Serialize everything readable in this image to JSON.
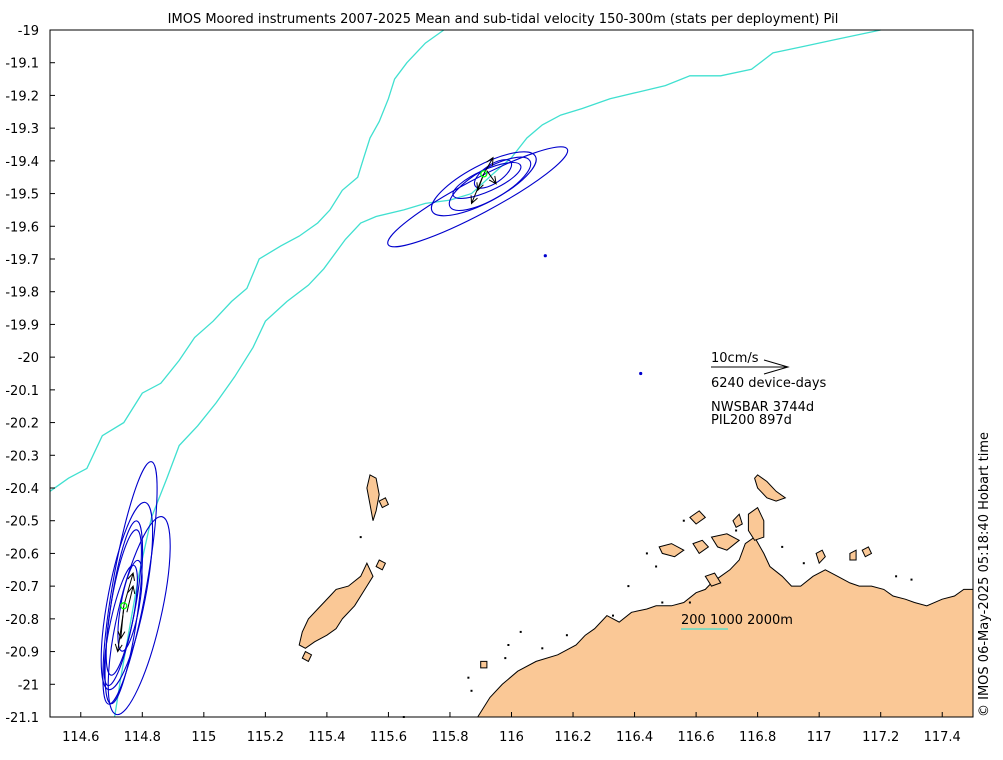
{
  "title": "IMOS Moored instruments 2007-2025 Mean and sub-tidal velocity 150-300m (stats per deployment) Pil",
  "copyright": "© IMOS 06-May-2025 05:18:40 Hobart time",
  "colors": {
    "land": "#fac896",
    "coast": "#000000",
    "isobath": "#40e0d0",
    "ellipse": "#0000cc",
    "arrow": "#000000",
    "mooring_marker": "#00ff00"
  },
  "axes": {
    "xlim": [
      114.5,
      117.5
    ],
    "ylim": [
      -21.1,
      -19.0
    ],
    "x_ticks": [
      114.6,
      114.8,
      115,
      115.2,
      115.4,
      115.6,
      115.8,
      116,
      116.2,
      116.4,
      116.6,
      116.8,
      117,
      117.2,
      117.4
    ],
    "x_tick_labels": [
      "114.6",
      "114.8",
      "115",
      "115.2",
      "115.4",
      "115.6",
      "115.8",
      "116",
      "116.2",
      "116.4",
      "116.6",
      "116.8",
      "117",
      "117.2",
      "117.4"
    ],
    "y_ticks": [
      -19,
      -19.1,
      -19.2,
      -19.3,
      -19.4,
      -19.5,
      -19.6,
      -19.7,
      -19.8,
      -19.9,
      -20,
      -20.1,
      -20.2,
      -20.3,
      -20.4,
      -20.5,
      -20.6,
      -20.7,
      -20.8,
      -20.9,
      -21,
      -21.1
    ],
    "y_tick_labels": [
      "-19",
      "-19.1",
      "-19.2",
      "-19.3",
      "-19.4",
      "-19.5",
      "-19.6",
      "-19.7",
      "-19.8",
      "-19.9",
      "-20",
      "-20.1",
      "-20.2",
      "-20.3",
      "-20.4",
      "-20.5",
      "-20.6",
      "-20.7",
      "-20.8",
      "-20.9",
      "-21",
      "-21.1"
    ]
  },
  "legend": {
    "scale_label": "10cm/s",
    "device_days": "6240 device-days",
    "station_1": "NWSBAR 3744d",
    "station_2": "PIL200 897d",
    "isobath_label": "200 1000 2000m"
  },
  "isobaths": [
    {
      "depth": 200,
      "points": [
        [
          114.5,
          -20.41
        ],
        [
          114.56,
          -20.37
        ],
        [
          114.62,
          -20.34
        ],
        [
          114.67,
          -20.24
        ],
        [
          114.74,
          -20.2
        ],
        [
          114.8,
          -20.11
        ],
        [
          114.86,
          -20.08
        ],
        [
          114.92,
          -20.01
        ],
        [
          114.97,
          -19.94
        ],
        [
          115.03,
          -19.89
        ],
        [
          115.09,
          -19.83
        ],
        [
          115.14,
          -19.79
        ],
        [
          115.18,
          -19.7
        ],
        [
          115.25,
          -19.66
        ],
        [
          115.31,
          -19.63
        ],
        [
          115.37,
          -19.59
        ],
        [
          115.41,
          -19.55
        ],
        [
          115.45,
          -19.49
        ],
        [
          115.5,
          -19.45
        ],
        [
          115.52,
          -19.39
        ],
        [
          115.54,
          -19.33
        ],
        [
          115.57,
          -19.28
        ],
        [
          115.6,
          -19.21
        ],
        [
          115.62,
          -19.15
        ],
        [
          115.66,
          -19.1
        ],
        [
          115.72,
          -19.04
        ],
        [
          115.78,
          -19.0
        ]
      ]
    },
    {
      "depth": 1000,
      "points": [
        [
          114.71,
          -21.1
        ],
        [
          114.73,
          -20.98
        ],
        [
          114.76,
          -20.82
        ],
        [
          114.79,
          -20.66
        ],
        [
          114.83,
          -20.49
        ],
        [
          114.88,
          -20.37
        ],
        [
          114.92,
          -20.27
        ],
        [
          114.98,
          -20.21
        ],
        [
          115.04,
          -20.14
        ],
        [
          115.1,
          -20.06
        ],
        [
          115.16,
          -19.97
        ],
        [
          115.2,
          -19.89
        ],
        [
          115.27,
          -19.83
        ],
        [
          115.34,
          -19.78
        ],
        [
          115.39,
          -19.73
        ],
        [
          115.46,
          -19.64
        ],
        [
          115.51,
          -19.59
        ],
        [
          115.56,
          -19.57
        ],
        [
          115.65,
          -19.55
        ],
        [
          115.72,
          -19.53
        ],
        [
          115.8,
          -19.52
        ],
        [
          115.87,
          -19.5
        ],
        [
          115.94,
          -19.44
        ],
        [
          116.0,
          -19.39
        ],
        [
          116.05,
          -19.33
        ],
        [
          116.1,
          -19.29
        ],
        [
          116.16,
          -19.26
        ],
        [
          116.23,
          -19.24
        ],
        [
          116.32,
          -19.21
        ],
        [
          116.41,
          -19.19
        ],
        [
          116.5,
          -19.17
        ],
        [
          116.58,
          -19.14
        ],
        [
          116.68,
          -19.14
        ],
        [
          116.78,
          -19.12
        ],
        [
          116.85,
          -19.07
        ],
        [
          116.95,
          -19.05
        ],
        [
          117.05,
          -19.03
        ],
        [
          117.15,
          -19.01
        ],
        [
          117.2,
          -19.0
        ]
      ]
    }
  ],
  "moorings": [
    {
      "name": "NWSBAR",
      "lon": 115.91,
      "lat": -19.44,
      "ellipses": [
        {
          "cx": 115.89,
          "cy": -19.51,
          "rx": 0.33,
          "ry": 0.055,
          "angle": -28
        },
        {
          "cx": 115.91,
          "cy": -19.47,
          "rx": 0.19,
          "ry": 0.06,
          "angle": -28
        },
        {
          "cx": 115.93,
          "cy": -19.47,
          "rx": 0.15,
          "ry": 0.05,
          "angle": -30
        },
        {
          "cx": 115.92,
          "cy": -19.46,
          "rx": 0.12,
          "ry": 0.035,
          "angle": -24
        },
        {
          "cx": 115.94,
          "cy": -19.44,
          "rx": 0.07,
          "ry": 0.03,
          "angle": -34
        }
      ],
      "arrows": [
        [
          115.91,
          -19.44,
          115.87,
          -19.53
        ],
        [
          115.91,
          -19.44,
          115.89,
          -19.49
        ],
        [
          115.92,
          -19.43,
          115.95,
          -19.47
        ],
        [
          115.91,
          -19.44,
          115.94,
          -19.39
        ]
      ]
    },
    {
      "name": "PIL200",
      "lon": 114.74,
      "lat": -20.76,
      "ellipses": [
        {
          "cx": 114.76,
          "cy": -20.69,
          "rx": 0.4,
          "ry": 0.055,
          "angle": -80
        },
        {
          "cx": 114.79,
          "cy": -20.79,
          "rx": 0.33,
          "ry": 0.07,
          "angle": -77
        },
        {
          "cx": 114.75,
          "cy": -20.73,
          "rx": 0.31,
          "ry": 0.06,
          "angle": -79
        },
        {
          "cx": 114.74,
          "cy": -20.78,
          "rx": 0.3,
          "ry": 0.045,
          "angle": -82
        },
        {
          "cx": 114.74,
          "cy": -20.75,
          "rx": 0.24,
          "ry": 0.04,
          "angle": -80
        },
        {
          "cx": 114.73,
          "cy": -20.82,
          "rx": 0.2,
          "ry": 0.035,
          "angle": -78
        },
        {
          "cx": 114.76,
          "cy": -20.76,
          "rx": 0.15,
          "ry": 0.03,
          "angle": -80
        }
      ],
      "arrows": [
        [
          114.74,
          -20.76,
          114.77,
          -20.66
        ],
        [
          114.74,
          -20.76,
          114.73,
          -20.86
        ],
        [
          114.75,
          -20.78,
          114.77,
          -20.7
        ],
        [
          114.74,
          -20.77,
          114.72,
          -20.9
        ]
      ]
    }
  ],
  "isolated_points": [
    {
      "lon": 116.11,
      "lat": -19.69
    },
    {
      "lon": 116.42,
      "lat": -20.05
    }
  ],
  "land": {
    "mainland": [
      [
        115.89,
        -21.1
      ],
      [
        115.93,
        -21.04
      ],
      [
        115.97,
        -21.0
      ],
      [
        116.02,
        -20.96
      ],
      [
        116.08,
        -20.93
      ],
      [
        116.15,
        -20.91
      ],
      [
        116.21,
        -20.88
      ],
      [
        116.24,
        -20.85
      ],
      [
        116.27,
        -20.83
      ],
      [
        116.31,
        -20.79
      ],
      [
        116.35,
        -20.81
      ],
      [
        116.39,
        -20.78
      ],
      [
        116.44,
        -20.77
      ],
      [
        116.47,
        -20.76
      ],
      [
        116.52,
        -20.76
      ],
      [
        116.56,
        -20.75
      ],
      [
        116.6,
        -20.72
      ],
      [
        116.63,
        -20.71
      ],
      [
        116.65,
        -20.69
      ],
      [
        116.68,
        -20.67
      ],
      [
        116.71,
        -20.65
      ],
      [
        116.74,
        -20.62
      ],
      [
        116.76,
        -20.57
      ],
      [
        116.79,
        -20.55
      ],
      [
        116.82,
        -20.6
      ],
      [
        116.84,
        -20.64
      ],
      [
        116.88,
        -20.67
      ],
      [
        116.91,
        -20.7
      ],
      [
        116.94,
        -20.7
      ],
      [
        116.98,
        -20.67
      ],
      [
        117.02,
        -20.65
      ],
      [
        117.06,
        -20.67
      ],
      [
        117.1,
        -20.69
      ],
      [
        117.13,
        -20.7
      ],
      [
        117.17,
        -20.7
      ],
      [
        117.21,
        -20.71
      ],
      [
        117.24,
        -20.73
      ],
      [
        117.28,
        -20.74
      ],
      [
        117.31,
        -20.75
      ],
      [
        117.35,
        -20.76
      ],
      [
        117.4,
        -20.74
      ],
      [
        117.44,
        -20.73
      ],
      [
        117.47,
        -20.71
      ],
      [
        117.5,
        -20.71
      ],
      [
        117.5,
        -21.1
      ]
    ],
    "islands": [
      [
        [
          115.45,
          -20.8
        ],
        [
          115.49,
          -20.76
        ],
        [
          115.53,
          -20.7
        ],
        [
          115.55,
          -20.67
        ],
        [
          115.53,
          -20.63
        ],
        [
          115.51,
          -20.67
        ],
        [
          115.47,
          -20.7
        ],
        [
          115.43,
          -20.71
        ],
        [
          115.41,
          -20.73
        ],
        [
          115.37,
          -20.77
        ],
        [
          115.34,
          -20.8
        ],
        [
          115.32,
          -20.84
        ],
        [
          115.31,
          -20.88
        ],
        [
          115.33,
          -20.89
        ],
        [
          115.36,
          -20.87
        ],
        [
          115.4,
          -20.85
        ],
        [
          115.43,
          -20.83
        ]
      ],
      [
        [
          116.8,
          -20.36
        ],
        [
          116.83,
          -20.38
        ],
        [
          116.86,
          -20.41
        ],
        [
          116.89,
          -20.43
        ],
        [
          116.86,
          -20.44
        ],
        [
          116.83,
          -20.43
        ],
        [
          116.8,
          -20.4
        ],
        [
          116.79,
          -20.37
        ]
      ],
      [
        [
          116.77,
          -20.48
        ],
        [
          116.8,
          -20.46
        ],
        [
          116.82,
          -20.5
        ],
        [
          116.82,
          -20.55
        ],
        [
          116.79,
          -20.56
        ],
        [
          116.77,
          -20.53
        ]
      ],
      [
        [
          116.48,
          -20.58
        ],
        [
          116.52,
          -20.57
        ],
        [
          116.56,
          -20.59
        ],
        [
          116.53,
          -20.61
        ],
        [
          116.49,
          -20.6
        ]
      ],
      [
        [
          116.59,
          -20.57
        ],
        [
          116.62,
          -20.56
        ],
        [
          116.64,
          -20.58
        ],
        [
          116.61,
          -20.6
        ]
      ],
      [
        [
          116.65,
          -20.55
        ],
        [
          116.7,
          -20.54
        ],
        [
          116.74,
          -20.56
        ],
        [
          116.7,
          -20.59
        ],
        [
          116.67,
          -20.58
        ]
      ],
      [
        [
          116.58,
          -20.49
        ],
        [
          116.61,
          -20.47
        ],
        [
          116.63,
          -20.49
        ],
        [
          116.6,
          -20.51
        ]
      ],
      [
        [
          116.72,
          -20.5
        ],
        [
          116.74,
          -20.48
        ],
        [
          116.75,
          -20.51
        ],
        [
          116.73,
          -20.52
        ]
      ],
      [
        [
          117.14,
          -20.59
        ],
        [
          117.16,
          -20.58
        ],
        [
          117.17,
          -20.6
        ],
        [
          117.15,
          -20.61
        ]
      ],
      [
        [
          117.1,
          -20.6
        ],
        [
          117.12,
          -20.59
        ],
        [
          117.12,
          -20.62
        ],
        [
          117.1,
          -20.62
        ]
      ],
      [
        [
          115.54,
          -20.36
        ],
        [
          115.56,
          -20.37
        ],
        [
          115.57,
          -20.42
        ],
        [
          115.56,
          -20.47
        ],
        [
          115.55,
          -20.5
        ],
        [
          115.54,
          -20.45
        ],
        [
          115.53,
          -20.4
        ]
      ],
      [
        [
          115.57,
          -20.44
        ],
        [
          115.59,
          -20.43
        ],
        [
          115.6,
          -20.45
        ],
        [
          115.58,
          -20.46
        ]
      ],
      [
        [
          115.57,
          -20.62
        ],
        [
          115.59,
          -20.63
        ],
        [
          115.58,
          -20.65
        ],
        [
          115.56,
          -20.64
        ]
      ],
      [
        [
          116.99,
          -20.6
        ],
        [
          117.01,
          -20.59
        ],
        [
          117.02,
          -20.61
        ],
        [
          117.0,
          -20.63
        ]
      ],
      [
        [
          116.63,
          -20.67
        ],
        [
          116.66,
          -20.66
        ],
        [
          116.68,
          -20.69
        ],
        [
          116.65,
          -20.7
        ]
      ],
      [
        [
          115.9,
          -20.93
        ],
        [
          115.92,
          -20.93
        ],
        [
          115.92,
          -20.95
        ],
        [
          115.9,
          -20.95
        ]
      ],
      [
        [
          115.33,
          -20.9
        ],
        [
          115.35,
          -20.91
        ],
        [
          115.34,
          -20.93
        ],
        [
          115.32,
          -20.92
        ]
      ]
    ],
    "dots": [
      [
        115.51,
        -20.55
      ],
      [
        116.1,
        -20.89
      ],
      [
        115.98,
        -20.92
      ],
      [
        115.86,
        -20.98
      ],
      [
        116.18,
        -20.85
      ],
      [
        116.33,
        -20.79
      ],
      [
        116.44,
        -20.6
      ],
      [
        116.47,
        -20.64
      ],
      [
        116.38,
        -20.7
      ],
      [
        116.49,
        -20.75
      ],
      [
        116.58,
        -20.75
      ],
      [
        116.88,
        -20.58
      ],
      [
        116.95,
        -20.63
      ],
      [
        117.25,
        -20.67
      ],
      [
        117.3,
        -20.68
      ],
      [
        116.73,
        -20.53
      ],
      [
        116.56,
        -20.5
      ],
      [
        115.65,
        -21.1
      ],
      [
        115.87,
        -21.02
      ],
      [
        116.03,
        -20.84
      ],
      [
        115.99,
        -20.88
      ]
    ]
  }
}
